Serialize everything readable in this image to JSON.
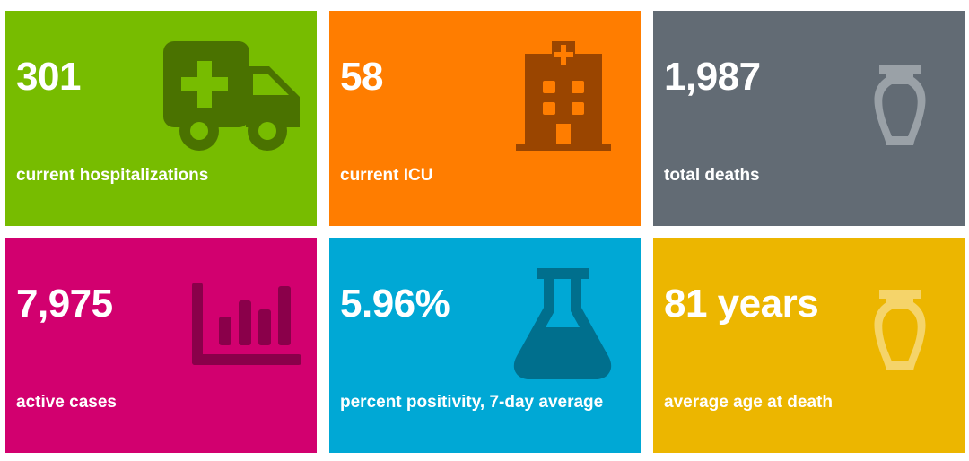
{
  "tiles": [
    {
      "value": "301",
      "label": "current hospitalizations",
      "icon": "ambulance-icon",
      "color": "#77bc00",
      "icon_color": "#4a7200"
    },
    {
      "value": "58",
      "label": "current ICU",
      "icon": "hospital-icon",
      "color": "#ff7d00",
      "icon_color": "#9a4500"
    },
    {
      "value": "1,987",
      "label": "total deaths",
      "icon": "urn-icon",
      "color": "#626b74",
      "icon_color": "#9aa1a7"
    },
    {
      "value": "7,975",
      "label": "active cases",
      "icon": "bar-chart-icon",
      "color": "#d2006f",
      "icon_color": "#8a004a"
    },
    {
      "value": "5.96%",
      "label": "percent positivity, 7-day average",
      "icon": "flask-icon",
      "color": "#00a8d5",
      "icon_color": "#006f8d"
    },
    {
      "value": "81 years",
      "label": "average age at death",
      "icon": "urn-icon",
      "color": "#ecb600",
      "icon_color": "#f5d46a"
    }
  ]
}
